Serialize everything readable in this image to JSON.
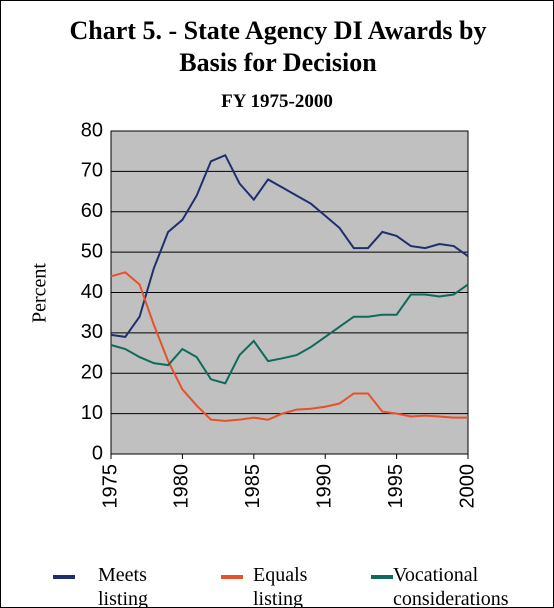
{
  "chart_data": {
    "type": "line",
    "title": "Chart 5. - State Agency DI Awards by Basis for Decision",
    "subtitle": "FY 1975-2000",
    "y_label": "Percent",
    "x": [
      1975,
      1976,
      1977,
      1978,
      1979,
      1980,
      1981,
      1982,
      1983,
      1984,
      1985,
      1986,
      1987,
      1988,
      1989,
      1990,
      1991,
      1992,
      1993,
      1994,
      1995,
      1996,
      1997,
      1998,
      1999,
      2000
    ],
    "series": [
      {
        "name": "Meets listing",
        "color": "#1f2f6e",
        "values": [
          29.5,
          29,
          34,
          46,
          55,
          58,
          64,
          72.5,
          74,
          67,
          63,
          68,
          66,
          64,
          62,
          59,
          56,
          51,
          51,
          55,
          54,
          51.5,
          51,
          52,
          51.5,
          49
        ]
      },
      {
        "name": "Equals listing",
        "color": "#e8502a",
        "values": [
          44,
          45,
          42,
          32,
          23,
          16,
          12,
          8.5,
          8.2,
          8.5,
          9,
          8.5,
          10,
          11,
          11.2,
          11.7,
          12.5,
          15,
          15,
          10.5,
          10,
          9.3,
          9.5,
          9.3,
          9,
          9
        ]
      },
      {
        "name": "Vocational considerations",
        "color": "#0e6a5a",
        "values": [
          27,
          26,
          24,
          22.5,
          22,
          26,
          24,
          18.5,
          17.5,
          24.5,
          28,
          23,
          23.7,
          24.5,
          26.5,
          29,
          31.5,
          34,
          34,
          34.5,
          34.5,
          39.5,
          39.5,
          39,
          39.5,
          42
        ]
      }
    ],
    "xlim": [
      1975,
      2000
    ],
    "xticks": [
      1975,
      1980,
      1985,
      1990,
      1995,
      2000
    ],
    "ylim": [
      0,
      80
    ],
    "yticks": [
      0,
      10,
      20,
      30,
      40,
      50,
      60,
      70,
      80
    ],
    "grid": true
  }
}
